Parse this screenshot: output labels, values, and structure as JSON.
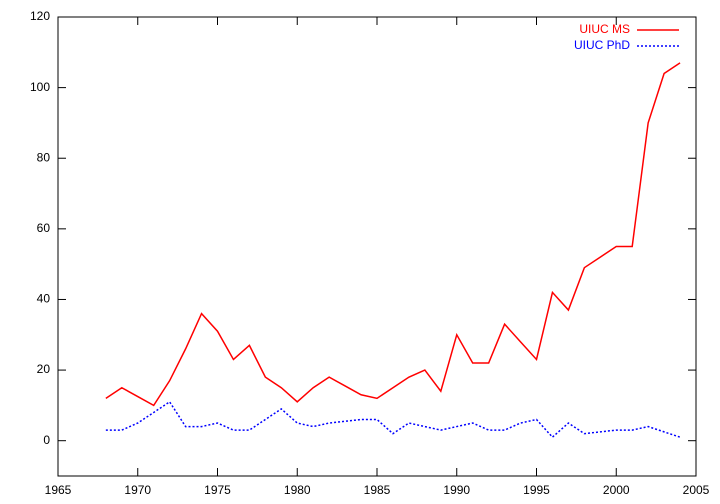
{
  "chart_data": {
    "type": "line",
    "x": [
      1968,
      1969,
      1970,
      1971,
      1972,
      1973,
      1974,
      1975,
      1976,
      1977,
      1978,
      1979,
      1980,
      1981,
      1982,
      1983,
      1984,
      1985,
      1986,
      1987,
      1988,
      1989,
      1990,
      1991,
      1992,
      1993,
      1994,
      1995,
      1996,
      1997,
      1998,
      1999,
      2000,
      2001,
      2002,
      2003,
      2004
    ],
    "series": [
      {
        "name": "UIUC MS",
        "color": "#ff0000",
        "dash": "solid",
        "values": [
          12,
          15,
          12.5,
          10,
          17,
          26,
          36,
          31,
          23,
          27,
          18,
          15,
          11,
          15,
          18,
          15.5,
          13,
          12,
          15,
          18,
          20,
          14,
          30,
          22,
          22,
          33,
          28,
          23,
          42,
          37,
          49,
          52,
          55,
          55,
          90,
          104,
          107
        ]
      },
      {
        "name": "UIUC PhD",
        "color": "#0000ff",
        "dash": "dotted",
        "values": [
          3,
          3,
          5,
          8,
          11,
          4,
          4,
          5,
          3,
          3,
          6,
          9,
          5,
          4,
          5,
          5.5,
          6,
          6,
          2,
          5,
          4,
          3,
          4,
          5,
          3,
          3,
          5,
          6,
          1,
          5,
          2,
          2.5,
          3,
          3,
          4,
          2.5,
          1
        ]
      }
    ],
    "xlim": [
      1965,
      2005
    ],
    "xticks": [
      1965,
      1970,
      1975,
      1980,
      1985,
      1990,
      1995,
      2000,
      2005
    ],
    "ylim": [
      -10,
      120
    ],
    "yticks": [
      0,
      20,
      40,
      60,
      80,
      100,
      120
    ],
    "legend": "top-right"
  }
}
